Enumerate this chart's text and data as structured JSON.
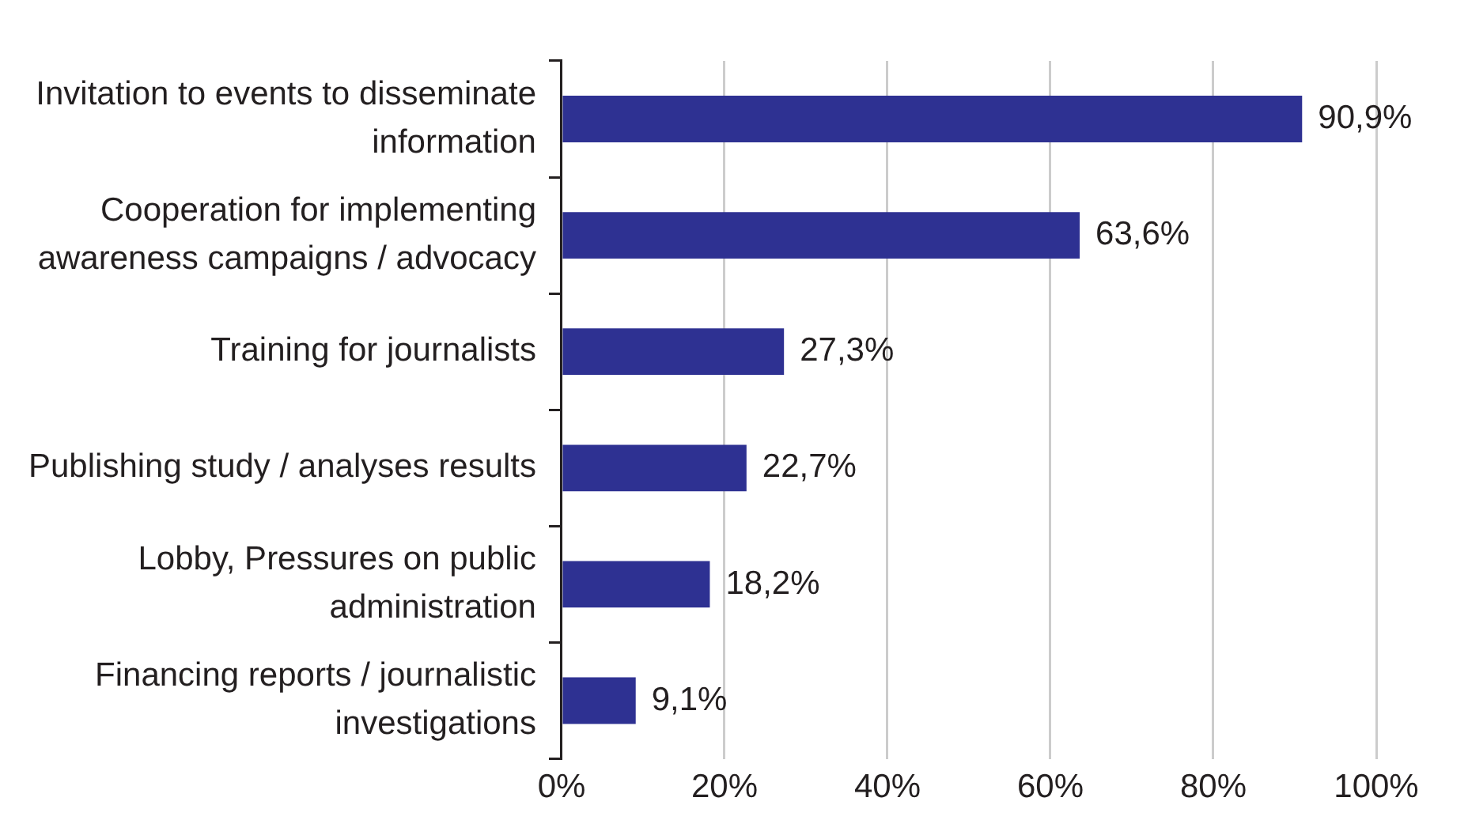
{
  "chart_data": {
    "type": "bar",
    "orientation": "horizontal",
    "categories": [
      "Invitation to events to disseminate information",
      "Cooperation for implementing awareness campaigns / advocacy",
      "Training for journalists",
      "Publishing study / analyses results",
      "Lobby, Pressures on public administration",
      "Financing reports / journalistic investigations"
    ],
    "values": [
      90.9,
      63.6,
      27.3,
      22.7,
      18.2,
      9.1
    ],
    "value_labels": [
      "90,9%",
      "63,6%",
      "27,3%",
      "22,7%",
      "18,2%",
      "9,1%"
    ],
    "color": "#2e3192",
    "xlim": [
      0,
      100
    ],
    "xticks": [
      {
        "value": 0,
        "label": "0%"
      },
      {
        "value": 20,
        "label": "20%"
      },
      {
        "value": 40,
        "label": "40%"
      },
      {
        "value": 60,
        "label": "60%"
      },
      {
        "value": 80,
        "label": "80%"
      },
      {
        "value": 100,
        "label": "100%"
      }
    ],
    "grid": "x",
    "legend": false
  }
}
